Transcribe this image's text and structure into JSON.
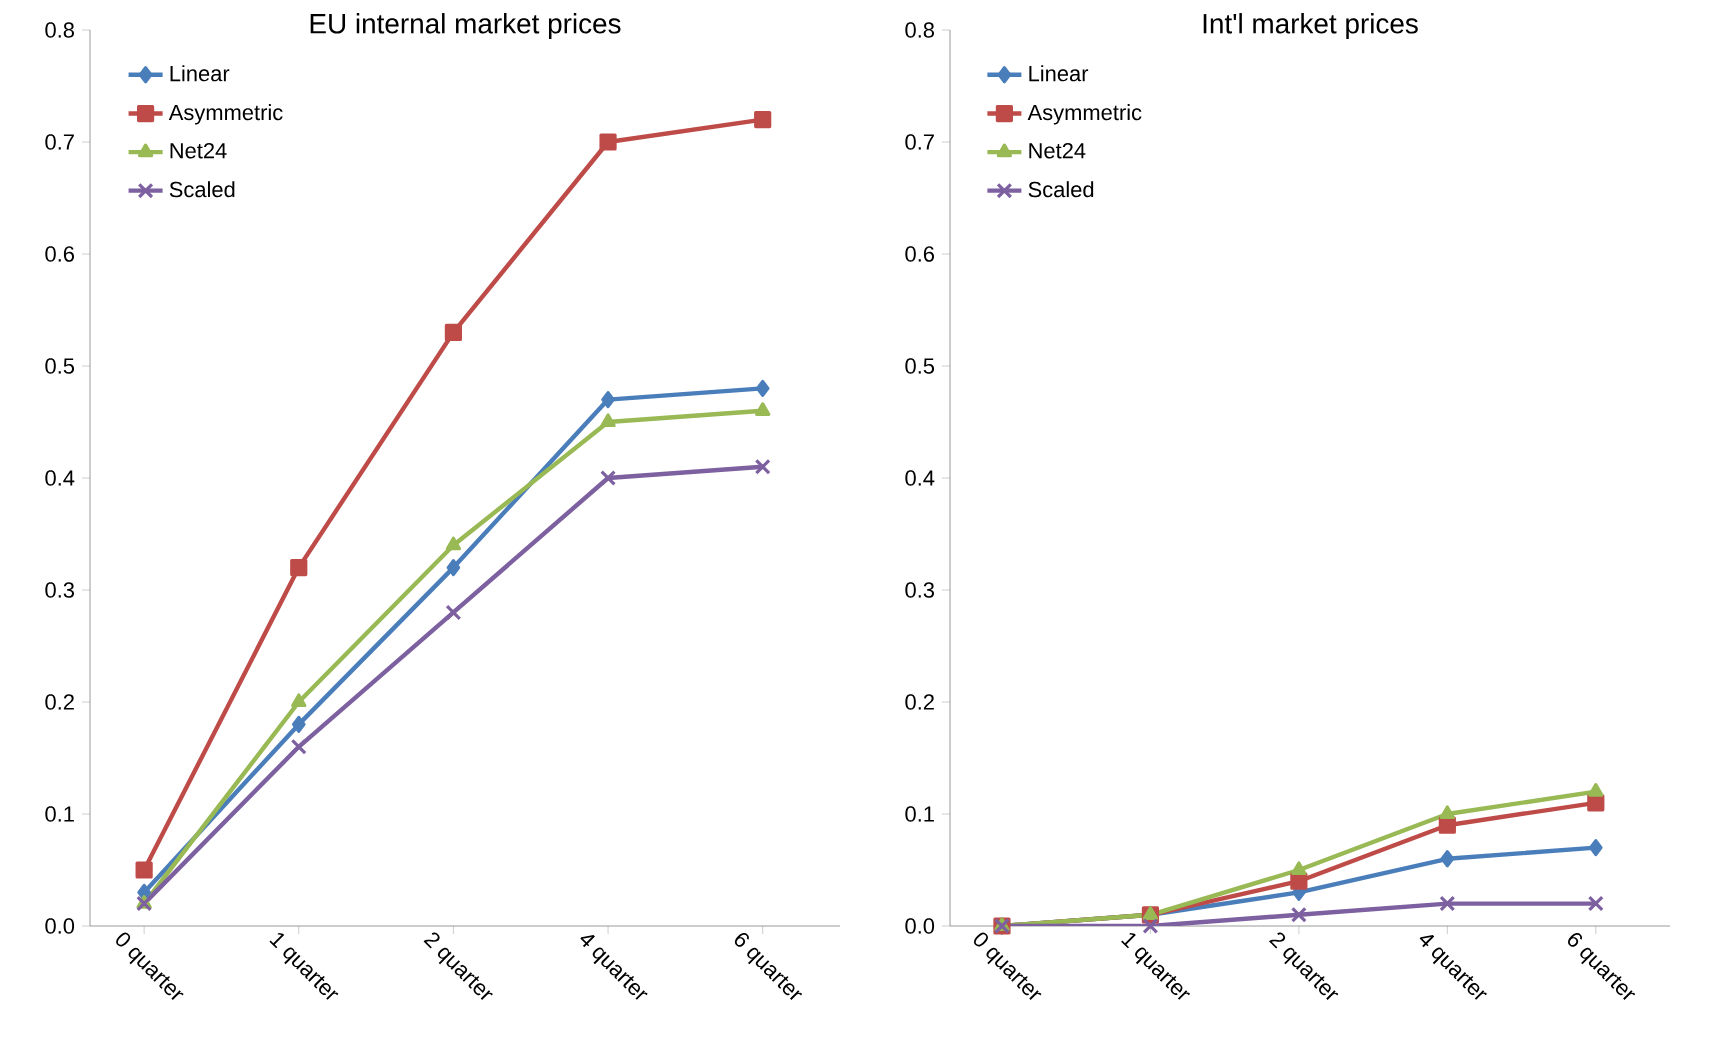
{
  "chart_data": [
    {
      "type": "line",
      "title": "EU internal market prices",
      "categories": [
        "0 quarter",
        "1 quarter",
        "2 quarter",
        "4 quarter",
        "6 quarter"
      ],
      "ylim": [
        0,
        0.8
      ],
      "yticks": [
        {
          "value": 0,
          "label": "0.0"
        },
        {
          "value": 0.1,
          "label": "0.1"
        },
        {
          "value": 0.2,
          "label": "0.2"
        },
        {
          "value": 0.3,
          "label": "0.3"
        },
        {
          "value": 0.4,
          "label": "0.4"
        },
        {
          "value": 0.5,
          "label": "0.5"
        },
        {
          "value": 0.6,
          "label": "0.6"
        },
        {
          "value": 0.7,
          "label": "0.7"
        },
        {
          "value": 0.8,
          "label": "0.8"
        }
      ],
      "grid": false,
      "legend": "top left",
      "series": [
        {
          "name": "Linear",
          "color": "#4a7ebb",
          "marker": "diamond",
          "values": [
            0.03,
            0.18,
            0.32,
            0.47,
            0.48
          ]
        },
        {
          "name": "Asymmetric",
          "color": "#be4b48",
          "marker": "square",
          "values": [
            0.05,
            0.32,
            0.53,
            0.7,
            0.72
          ]
        },
        {
          "name": "Net24",
          "color": "#98b954",
          "marker": "triangle",
          "values": [
            0.02,
            0.2,
            0.34,
            0.45,
            0.46
          ]
        },
        {
          "name": "Scaled",
          "color": "#7d60a0",
          "marker": "cross",
          "values": [
            0.02,
            0.16,
            0.28,
            0.4,
            0.41
          ]
        }
      ]
    },
    {
      "type": "line",
      "title": "Int'l market prices",
      "categories": [
        "0 quarter",
        "1 quarter",
        "2 quarter",
        "4 quarter",
        "6 quarter"
      ],
      "ylim": [
        0,
        0.8
      ],
      "yticks": [
        {
          "value": 0,
          "label": "0.0"
        },
        {
          "value": 0.1,
          "label": "0.1"
        },
        {
          "value": 0.2,
          "label": "0.2"
        },
        {
          "value": 0.3,
          "label": "0.3"
        },
        {
          "value": 0.4,
          "label": "0.4"
        },
        {
          "value": 0.5,
          "label": "0.5"
        },
        {
          "value": 0.6,
          "label": "0.6"
        },
        {
          "value": 0.7,
          "label": "0.7"
        },
        {
          "value": 0.8,
          "label": "0.8"
        }
      ],
      "grid": false,
      "legend": "top left",
      "series": [
        {
          "name": "Linear",
          "color": "#4a7ebb",
          "marker": "diamond",
          "values": [
            0,
            0.01,
            0.03,
            0.06,
            0.07
          ]
        },
        {
          "name": "Asymmetric",
          "color": "#be4b48",
          "marker": "square",
          "values": [
            0,
            0.01,
            0.04,
            0.09,
            0.11
          ]
        },
        {
          "name": "Net24",
          "color": "#98b954",
          "marker": "triangle",
          "values": [
            0,
            0.01,
            0.05,
            0.1,
            0.12
          ]
        },
        {
          "name": "Scaled",
          "color": "#7d60a0",
          "marker": "cross",
          "values": [
            0,
            0,
            0.01,
            0.02,
            0.02
          ]
        }
      ]
    }
  ]
}
